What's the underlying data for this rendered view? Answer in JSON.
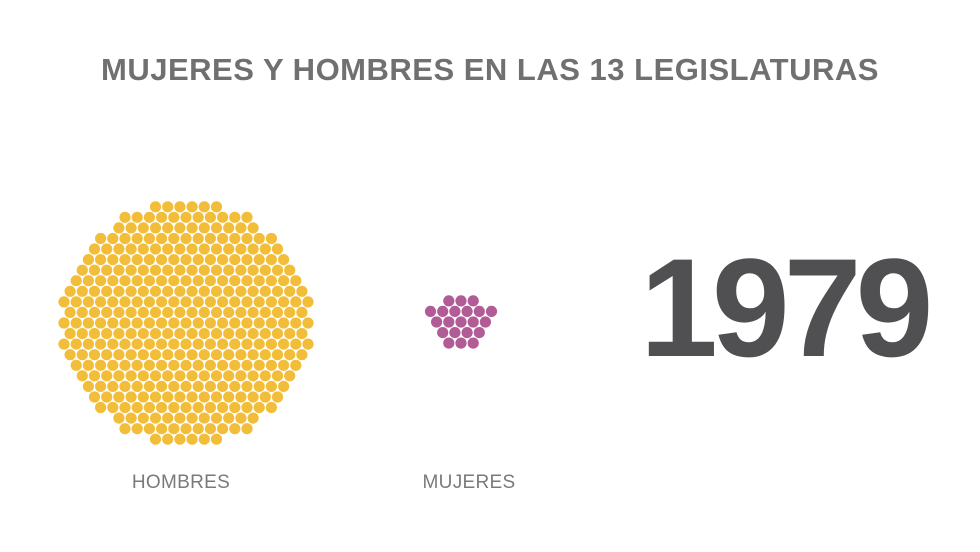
{
  "title": "MUJERES Y HOMBRES EN LAS 13 LEGISLATURAS",
  "year": "1979",
  "colors": {
    "hombres": "#F2BE3A",
    "mujeres": "#B15C96",
    "title": "#707070",
    "year": "#505052",
    "label": "#7a7a7a"
  },
  "chart_data": {
    "type": "bubble-cluster",
    "title": "MUJERES Y HOMBRES EN LAS 13 LEGISLATURAS",
    "legislature_year": "1979",
    "categories": [
      "HOMBRES",
      "MUJERES"
    ],
    "series": [
      {
        "label": "HOMBRES",
        "count": 371,
        "color": "#F2BE3A"
      },
      {
        "label": "MUJERES",
        "count": 21,
        "color": "#B15C96"
      }
    ]
  }
}
